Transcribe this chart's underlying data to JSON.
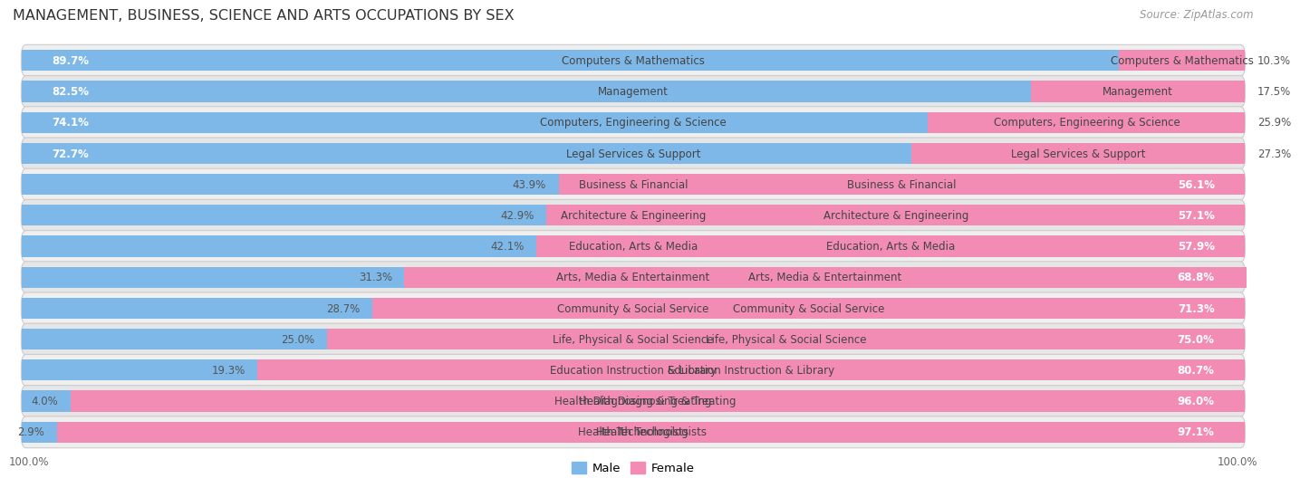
{
  "title": "MANAGEMENT, BUSINESS, SCIENCE AND ARTS OCCUPATIONS BY SEX",
  "source": "Source: ZipAtlas.com",
  "categories": [
    "Computers & Mathematics",
    "Management",
    "Computers, Engineering & Science",
    "Legal Services & Support",
    "Business & Financial",
    "Architecture & Engineering",
    "Education, Arts & Media",
    "Arts, Media & Entertainment",
    "Community & Social Service",
    "Life, Physical & Social Science",
    "Education Instruction & Library",
    "Health Diagnosing & Treating",
    "Health Technologists"
  ],
  "male": [
    89.7,
    82.5,
    74.1,
    72.7,
    43.9,
    42.9,
    42.1,
    31.3,
    28.7,
    25.0,
    19.3,
    4.0,
    2.9
  ],
  "female": [
    10.3,
    17.5,
    25.9,
    27.3,
    56.1,
    57.1,
    57.9,
    68.8,
    71.3,
    75.0,
    80.7,
    96.0,
    97.1
  ],
  "male_color": "#7db8e8",
  "female_color": "#f28cb4",
  "background_color": "#ffffff",
  "row_even_color": "#efefef",
  "row_odd_color": "#e6e6e6",
  "title_fontsize": 11.5,
  "bar_label_fontsize": 8.5,
  "category_fontsize": 8.5,
  "legend_fontsize": 9.5,
  "source_fontsize": 8.5,
  "bar_height": 0.68
}
